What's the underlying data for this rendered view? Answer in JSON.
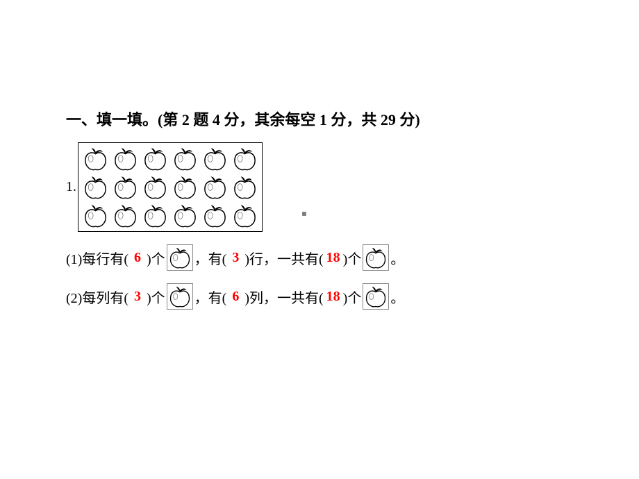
{
  "heading": "一、填一填。(第 2 题 4 分，其余每空 1 分，共 29 分)",
  "q1_num": "1.",
  "grid": {
    "rows": 3,
    "cols": 6
  },
  "sub1": {
    "prefix": "(1)每行有(",
    "ans1": "6",
    "mid1": ")个",
    "mid2": "，有(",
    "ans2": "3",
    "mid3": ")行，一共有(",
    "ans3": "18",
    "mid4": ")个",
    "suffix": "。"
  },
  "sub2": {
    "prefix": "(2)每列有(",
    "ans1": "3",
    "mid1": ")个",
    "mid2": "，有(",
    "ans2": "6",
    "mid3": ")列，一共有(",
    "ans3": "18",
    "mid4": ")个",
    "suffix": "。"
  },
  "colors": {
    "answer": "#ff0000",
    "text": "#000000",
    "background": "#ffffff"
  }
}
